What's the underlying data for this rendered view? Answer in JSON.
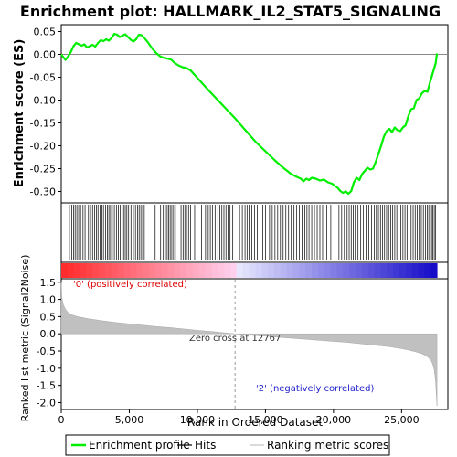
{
  "chart_data": {
    "type": "line",
    "title": "Enrichment plot: HALLMARK_IL2_STAT5_SIGNALING",
    "xlabel": "Rank in Ordered Dataset",
    "es_panel": {
      "ylabel": "Enrichment score (ES)",
      "ylim": [
        -0.325,
        0.065
      ],
      "yticks": [
        0.05,
        0.0,
        -0.05,
        -0.1,
        -0.15,
        -0.2,
        -0.25,
        -0.3
      ],
      "ytick_labels": [
        "0.05",
        "0.00",
        "-0.05",
        "-0.10",
        "-0.15",
        "-0.20",
        "-0.25",
        "-0.30"
      ],
      "series": [
        {
          "name": "Enrichment profile",
          "color": "#00ee00",
          "x": [
            0,
            300,
            500,
            700,
            900,
            1100,
            1300,
            1500,
            1700,
            1900,
            2100,
            2300,
            2500,
            2700,
            2900,
            3100,
            3300,
            3500,
            3700,
            3900,
            4100,
            4300,
            4500,
            4700,
            4900,
            5100,
            5300,
            5500,
            5700,
            5900,
            6100,
            6400,
            6700,
            7000,
            7300,
            7600,
            7900,
            8100,
            8300,
            8600,
            8900,
            9200,
            9500,
            9800,
            10200,
            10800,
            11500,
            12200,
            12767,
            13500,
            14300,
            15000,
            15700,
            16300,
            16900,
            17300,
            17600,
            17800,
            18000,
            18200,
            18400,
            18700,
            19000,
            19300,
            19600,
            19900,
            20100,
            20300,
            20500,
            20700,
            20900,
            21100,
            21300,
            21500,
            21700,
            21900,
            22100,
            22300,
            22500,
            22700,
            22900,
            23100,
            23300,
            23500,
            23700,
            23900,
            24100,
            24300,
            24500,
            24700,
            24900,
            25100,
            25300,
            25500,
            25700,
            25900,
            26100,
            26300,
            26500,
            26700,
            26900,
            27100,
            27300,
            27500,
            27600
          ],
          "y": [
            0.0,
            -0.012,
            -0.005,
            0.005,
            0.018,
            0.025,
            0.022,
            0.019,
            0.022,
            0.015,
            0.018,
            0.021,
            0.017,
            0.025,
            0.031,
            0.029,
            0.033,
            0.03,
            0.036,
            0.045,
            0.043,
            0.038,
            0.041,
            0.044,
            0.038,
            0.032,
            0.028,
            0.033,
            0.043,
            0.042,
            0.036,
            0.025,
            0.012,
            0.002,
            -0.005,
            -0.008,
            -0.01,
            -0.012,
            -0.018,
            -0.024,
            -0.028,
            -0.03,
            -0.035,
            -0.045,
            -0.058,
            -0.078,
            -0.1,
            -0.122,
            -0.14,
            -0.165,
            -0.192,
            -0.212,
            -0.232,
            -0.248,
            -0.262,
            -0.268,
            -0.272,
            -0.278,
            -0.272,
            -0.275,
            -0.27,
            -0.272,
            -0.276,
            -0.274,
            -0.28,
            -0.283,
            -0.288,
            -0.292,
            -0.299,
            -0.303,
            -0.3,
            -0.305,
            -0.299,
            -0.28,
            -0.27,
            -0.275,
            -0.262,
            -0.255,
            -0.248,
            -0.252,
            -0.25,
            -0.235,
            -0.218,
            -0.2,
            -0.18,
            -0.168,
            -0.163,
            -0.17,
            -0.16,
            -0.166,
            -0.168,
            -0.16,
            -0.155,
            -0.135,
            -0.12,
            -0.118,
            -0.1,
            -0.096,
            -0.085,
            -0.08,
            -0.082,
            -0.06,
            -0.04,
            -0.02,
            0.002
          ]
        }
      ]
    },
    "hits": {
      "name": "Hits",
      "color": "#000000",
      "positions": [
        600,
        780,
        900,
        1020,
        1150,
        1280,
        1420,
        1600,
        1750,
        2000,
        2150,
        2300,
        2450,
        2580,
        2700,
        2850,
        2980,
        3100,
        3250,
        3380,
        3500,
        3620,
        3750,
        3900,
        4050,
        4200,
        4330,
        4460,
        4580,
        4700,
        4820,
        4950,
        5120,
        5300,
        5450,
        5600,
        5720,
        5850,
        5980,
        6100,
        6900,
        7300,
        7500,
        7650,
        7780,
        7900,
        8000,
        8120,
        8250,
        8380,
        8800,
        8950,
        9080,
        9200,
        9350,
        9500,
        9800,
        10300,
        10600,
        10800,
        10950,
        11100,
        11300,
        11500,
        11650,
        11800,
        11950,
        12100,
        12250,
        12400,
        12600,
        13100,
        13300,
        13500,
        13650,
        13800,
        14000,
        14200,
        14400,
        14600,
        14800,
        15000,
        15300,
        15500,
        15700,
        15900,
        16100,
        16300,
        16500,
        16700,
        16900,
        17100,
        17300,
        17500,
        17700,
        17900,
        18050,
        18200,
        18400,
        18600,
        18800,
        19000,
        19200,
        19500,
        19800,
        20100,
        20400,
        20600,
        20800,
        21000,
        21150,
        21300,
        21450,
        21600,
        21800,
        22000,
        22200,
        22400,
        22600,
        22800,
        23000,
        23150,
        23300,
        23450,
        23600,
        23750,
        23900,
        24050,
        24200,
        24350,
        24500,
        24650,
        24800,
        24950,
        25100,
        25250,
        25400,
        25550,
        25700,
        25850,
        26000,
        26150,
        26300,
        26450,
        26600,
        26750,
        26900,
        27000,
        27100,
        27200,
        27300,
        27400,
        27500
      ]
    },
    "ranked_panel": {
      "name": "Ranking metric scores",
      "ylabel": "Ranked list metric (Signal2Noise)",
      "ylim": [
        -2.2,
        1.6
      ],
      "yticks": [
        1.5,
        1.0,
        0.5,
        0.0,
        -0.5,
        -1.0,
        -1.5,
        -2.0
      ],
      "ytick_labels": [
        "1.5",
        "1.0",
        "0.5",
        "0.0",
        "-0.5",
        "-1.0",
        "-1.5",
        "-2.0"
      ],
      "fill_color": "#c0c0c0",
      "x": [
        0,
        50,
        150,
        300,
        500,
        800,
        1200,
        2000,
        3000,
        4000,
        5000,
        6000,
        7000,
        8000,
        9000,
        10000,
        11000,
        12000,
        12767,
        14000,
        15000,
        16000,
        17000,
        18000,
        19000,
        20000,
        21000,
        22000,
        23000,
        24000,
        25000,
        25500,
        26000,
        26500,
        26800,
        27000,
        27200,
        27300,
        27400,
        27500,
        27600
      ],
      "y": [
        1.5,
        1.05,
        0.85,
        0.72,
        0.62,
        0.55,
        0.5,
        0.44,
        0.38,
        0.33,
        0.29,
        0.25,
        0.21,
        0.18,
        0.14,
        0.1,
        0.07,
        0.03,
        0.0,
        -0.04,
        -0.07,
        -0.1,
        -0.13,
        -0.16,
        -0.19,
        -0.22,
        -0.25,
        -0.29,
        -0.33,
        -0.37,
        -0.43,
        -0.47,
        -0.52,
        -0.58,
        -0.64,
        -0.7,
        -0.8,
        -0.9,
        -1.05,
        -1.4,
        -2.1
      ],
      "annotations": {
        "positive": "'0' (positively correlated)",
        "negative": "'2' (negatively correlated)",
        "zero_cross": "Zero cross at 12767",
        "zero_cross_x": 12767
      }
    },
    "xlim": [
      0,
      28400
    ],
    "xticks": [
      0,
      5000,
      10000,
      15000,
      20000,
      25000
    ],
    "xtick_labels": [
      "0",
      "5,000",
      "10,000",
      "15,000",
      "20,000",
      "25,000"
    ],
    "colorbar": {
      "n_genes": 27600,
      "zero_cross": 12767
    },
    "legend": {
      "placement": "bottom",
      "items": [
        {
          "label": "Enrichment profile",
          "color": "#00ee00"
        },
        {
          "label": "Hits",
          "color": "#000000"
        },
        {
          "label": "Ranking metric scores",
          "color": "#c0c0c0"
        }
      ]
    }
  }
}
